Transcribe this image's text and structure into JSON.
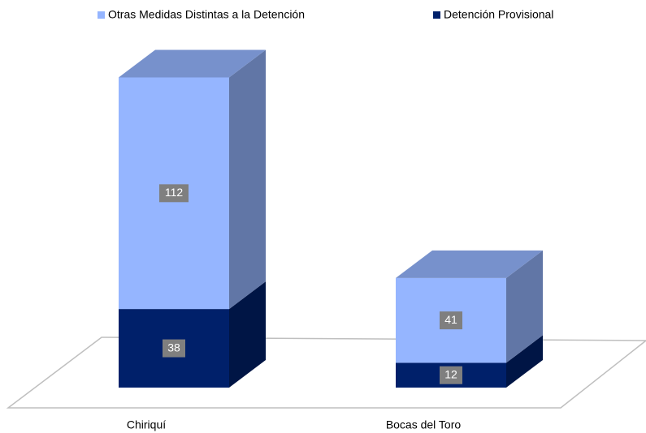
{
  "chart_data": {
    "type": "bar",
    "stacked": true,
    "three_d": true,
    "categories": [
      "Chiriquí",
      "Bocas del Toro"
    ],
    "series": [
      {
        "name": "Otras Medidas Distintas a la Detención",
        "color": "#95b5ff",
        "values": [
          112,
          41
        ]
      },
      {
        "name": "Detención Provisional",
        "color": "#00206a",
        "values": [
          38,
          12
        ]
      }
    ]
  }
}
